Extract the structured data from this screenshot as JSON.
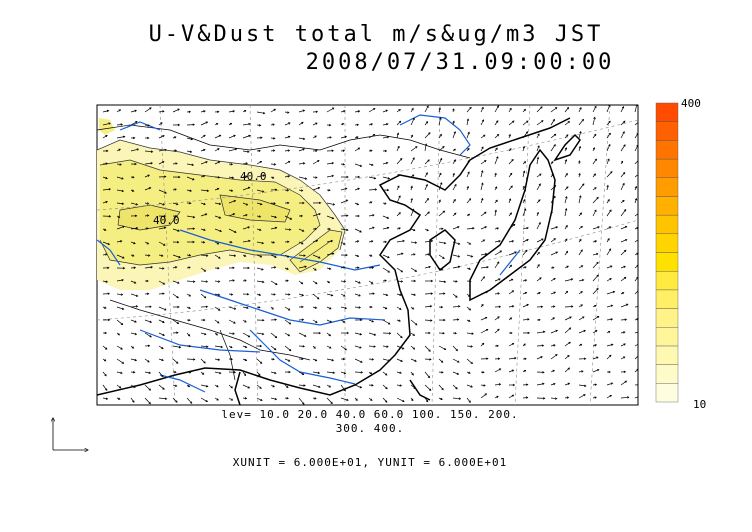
{
  "title": {
    "line1": "U-V&Dust total m/s&ug/m3 JST",
    "line2": "2008/07/31.09:00:00"
  },
  "colorbar": {
    "max_label": "400",
    "min_label": "10",
    "colors": [
      "#fffde0",
      "#fffbc8",
      "#fff8b0",
      "#fff59a",
      "#fff288",
      "#ffee66",
      "#ffea40",
      "#ffe100",
      "#ffd400",
      "#ffc400",
      "#ffb000",
      "#ff9c00",
      "#ff8800",
      "#ff7400",
      "#ff6000",
      "#ff4c00"
    ]
  },
  "contour_labels": [
    "40.0",
    "40.0"
  ],
  "levels_text": {
    "line1": "lev= 10.0 20.0 40.0 60.0 100. 150. 200.",
    "line2": "300. 400."
  },
  "units_text": "XUNIT = 6.000E+01, YUNIT = 6.000E+01",
  "colors": {
    "coastline": "#000000",
    "rivers": "#1a5fd6",
    "dust_fill_light": "#fbf6b8",
    "dust_fill": "#f5ee82"
  }
}
